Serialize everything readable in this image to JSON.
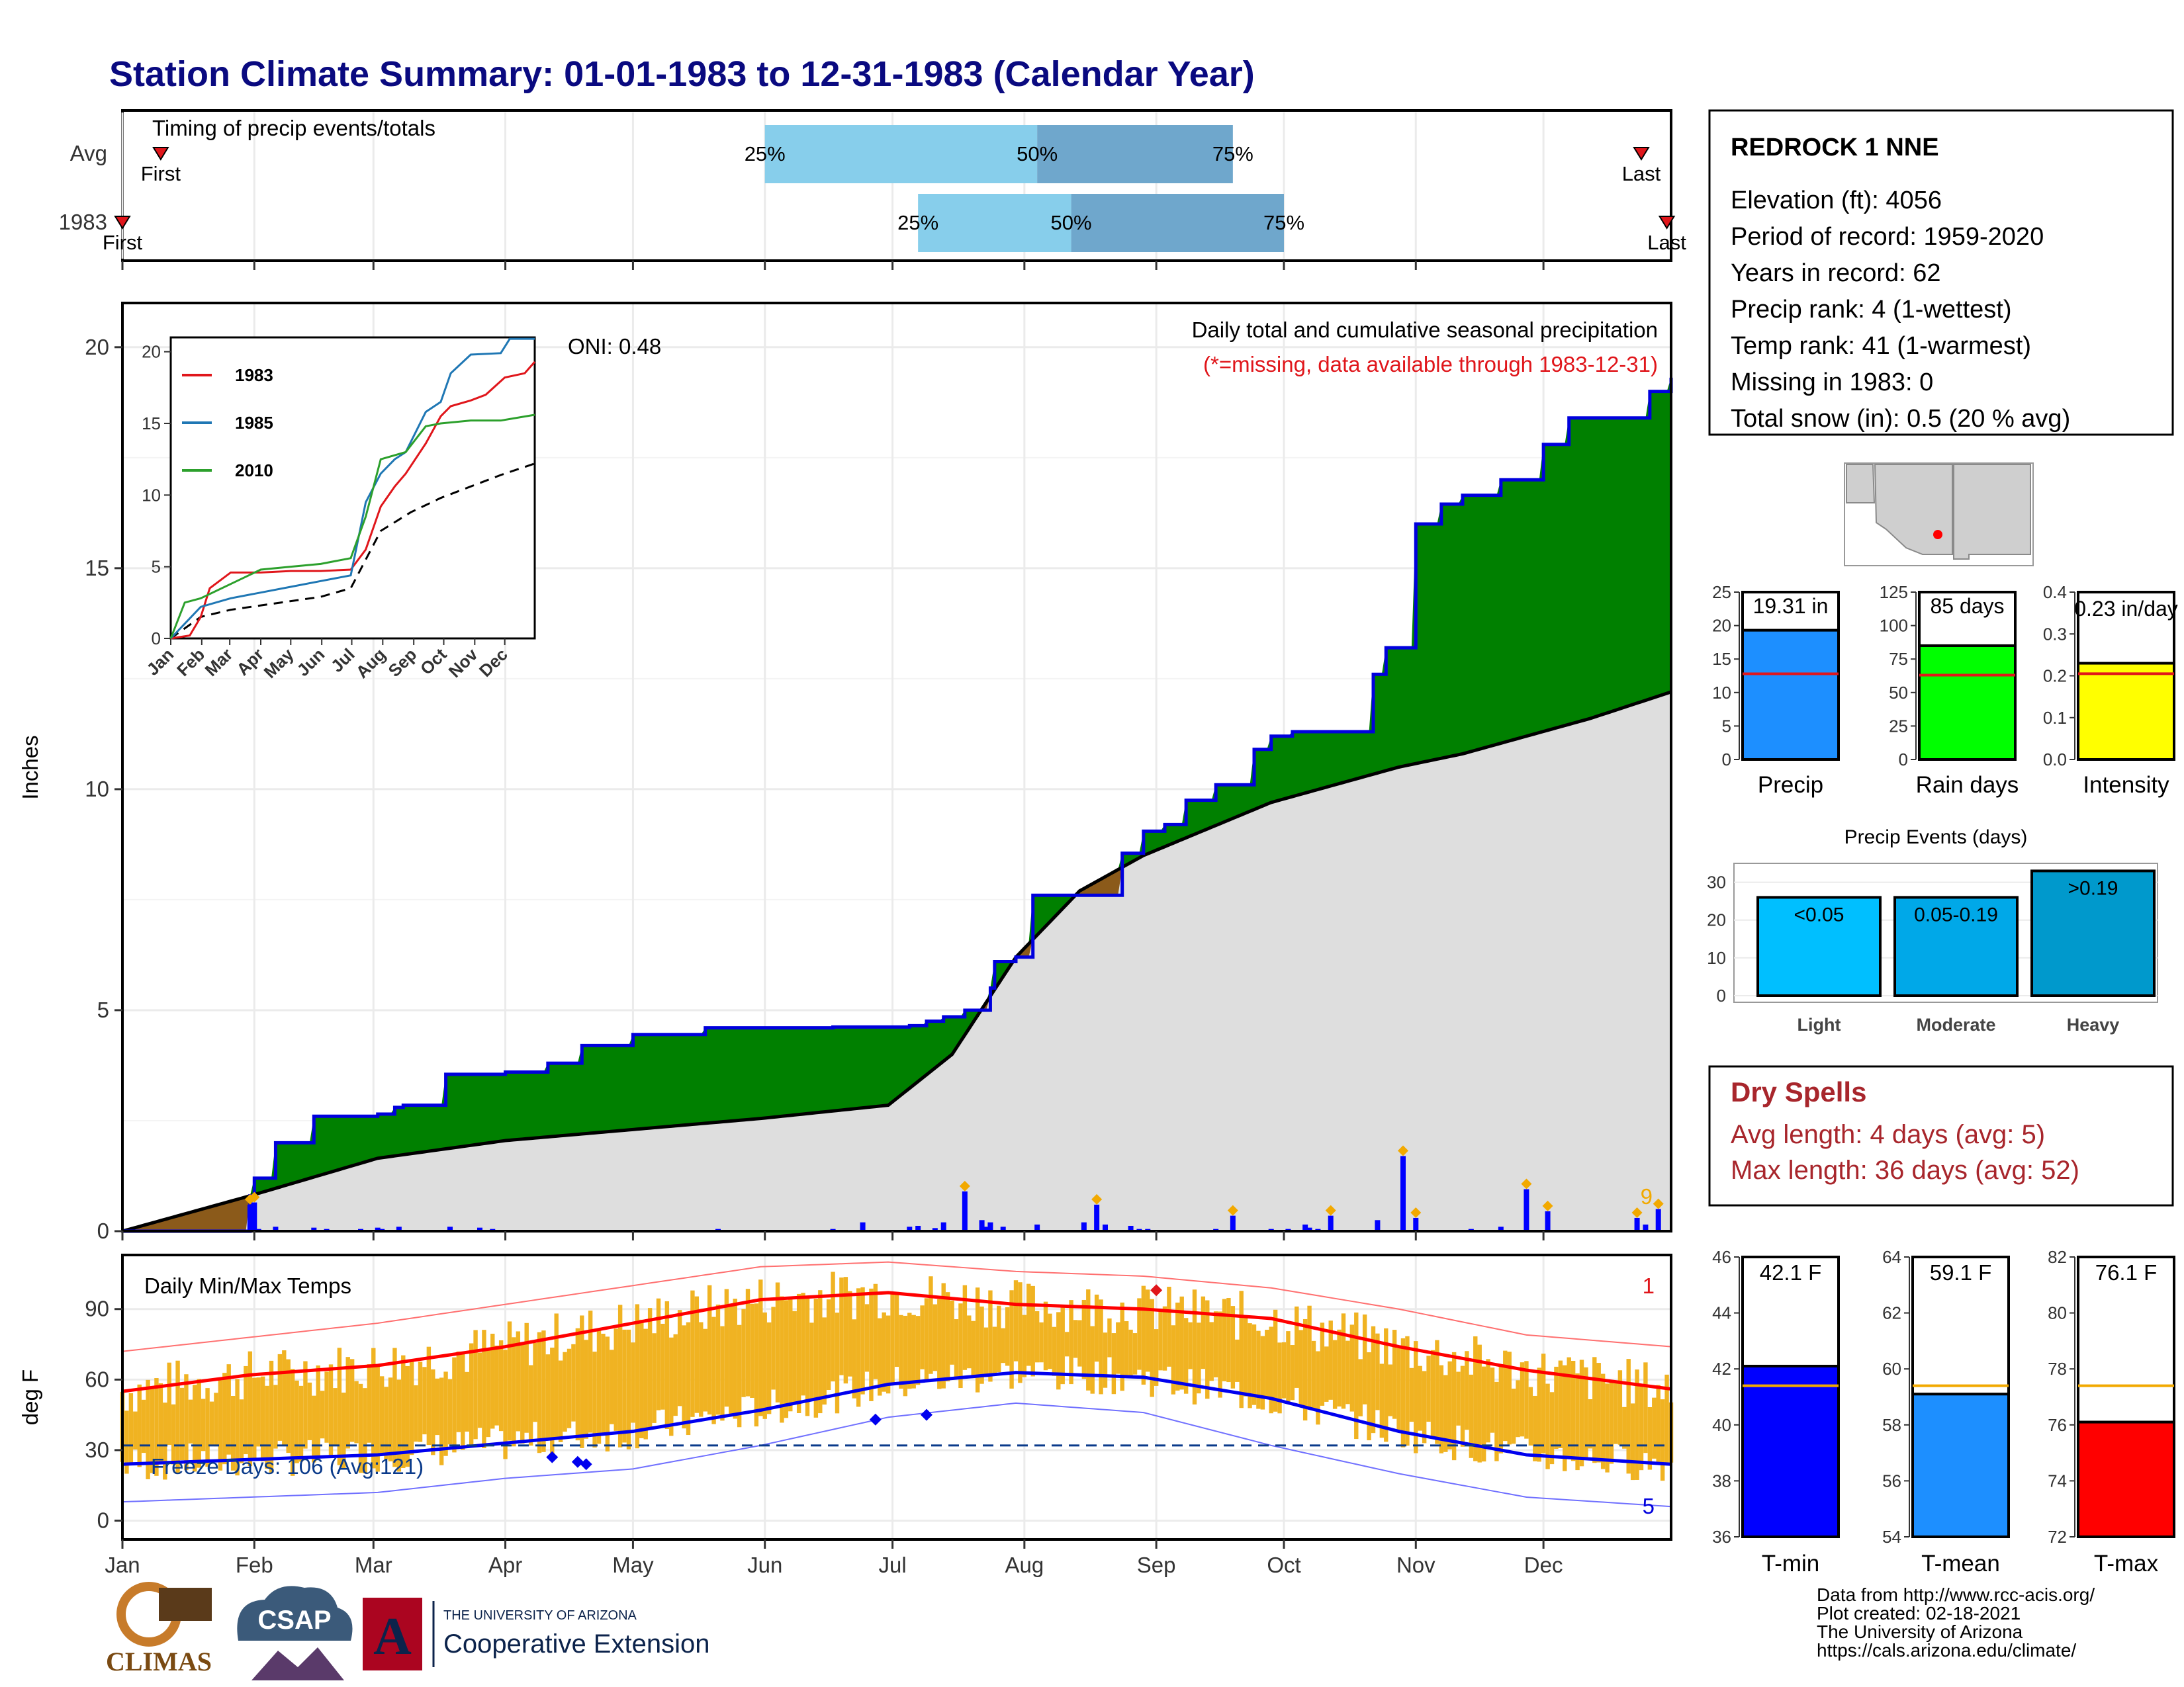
{
  "title": "Station Climate Summary: 01-01-1983 to 12-31-1983 (Calendar Year)",
  "colors": {
    "title": "#0a0a80",
    "green": "#008000",
    "blue_line": "#0000dd",
    "grey_fill": "#dedede",
    "brown": "#8b5a1a",
    "light_blue": "#87ceeb",
    "mid_blue": "#6fa7cc",
    "orange": "#f2a900",
    "red": "#e0161b",
    "bar_blue": "#1d8fff",
    "bar_green": "#00ff00",
    "bar_yellow": "#ffff00"
  },
  "timing_panel": {
    "title": "Timing of precip events/totals",
    "rows": [
      {
        "label": "Avg",
        "first_label": "First",
        "last_label": "Last",
        "p25_label": "25%",
        "p50_label": "50%",
        "p75_label": "75%",
        "first_day": 10,
        "last_day": 358,
        "p25_day": 152,
        "p50_day": 216,
        "p75_day": 262
      },
      {
        "label": "1983",
        "first_label": "First",
        "last_label": "Last",
        "p25_label": "25%",
        "p50_label": "50%",
        "p75_label": "75%",
        "first_day": 1,
        "last_day": 364,
        "p25_day": 188,
        "p50_day": 224,
        "p75_day": 274
      }
    ]
  },
  "station_info": {
    "name": "REDROCK 1 NNE",
    "lines": [
      "Elevation (ft): 4056",
      "Period of record: 1959-2020",
      "Years in record: 62",
      "Precip rank: 4 (1-wettest)",
      "Temp rank: 41 (1-warmest)",
      "Missing in 1983: 0",
      "Total snow (in): 0.5 (20 % avg)"
    ]
  },
  "precip_panel": {
    "ylabel": "Inches",
    "oni": "ONI: 0.48",
    "caption": "Daily total and cumulative seasonal precipitation",
    "missing_note": "(*=missing, data available through 1983-12-31)",
    "corner_count": "9",
    "yticks": [
      "0",
      "5",
      "10",
      "15",
      "20"
    ]
  },
  "inset": {
    "legend": [
      {
        "name": "1983",
        "color": "#e0161b"
      },
      {
        "name": "1985",
        "color": "#1f77b4"
      },
      {
        "name": "2010",
        "color": "#2ca02c"
      }
    ],
    "yticks": [
      "0",
      "5",
      "10",
      "15",
      "20"
    ],
    "xticks": [
      "Jan",
      "Feb",
      "Mar",
      "Apr",
      "May",
      "Jun",
      "Jul",
      "Aug",
      "Sep",
      "Oct",
      "Nov",
      "Dec"
    ]
  },
  "temp_panel": {
    "ylabel": "deg F",
    "title": "Daily Min/Max Temps",
    "freeze_text": "Freeze Days: 106 (Avg:121)",
    "record_high_count": "1",
    "record_low_count": "5",
    "yticks": [
      "0",
      "30",
      "60",
      "90"
    ]
  },
  "months": [
    "Jan",
    "Feb",
    "Mar",
    "Apr",
    "May",
    "Jun",
    "Jul",
    "Aug",
    "Sep",
    "Oct",
    "Nov",
    "Dec"
  ],
  "summary_bars": [
    {
      "label": "Precip",
      "value_text": "19.31 in",
      "value": 19.31,
      "avg": 12.8,
      "ymax": 25,
      "yticks": [
        "0",
        "5",
        "10",
        "15",
        "20",
        "25"
      ],
      "color": "#1d8fff"
    },
    {
      "label": "Rain days",
      "value_text": "85 days",
      "value": 85,
      "avg": 63,
      "ymax": 125,
      "yticks": [
        "0",
        "25",
        "50",
        "75",
        "100",
        "125"
      ],
      "color": "#00ff00"
    },
    {
      "label": "Intensity",
      "value_text": "0.23 in/day",
      "value": 0.23,
      "avg": 0.205,
      "ymax": 0.4,
      "yticks": [
        "0.0",
        "0.1",
        "0.2",
        "0.3",
        "0.4"
      ],
      "color": "#ffff00"
    }
  ],
  "precip_events": {
    "title": "Precip Events (days)",
    "yticks": [
      "0",
      "10",
      "20",
      "30"
    ],
    "bars": [
      {
        "label": "Light",
        "range": "<0.05",
        "value": 26,
        "color": "#00bfff"
      },
      {
        "label": "Moderate",
        "range": "0.05-0.19",
        "value": 26,
        "color": "#00a8e8"
      },
      {
        "label": "Heavy",
        "range": ">0.19",
        "value": 33,
        "color": "#0099cc"
      }
    ]
  },
  "dry_spells": {
    "title": "Dry Spells",
    "avg_line": "Avg length: 4 days (avg: 5)",
    "max_line": "Max length: 36 days (avg: 52)"
  },
  "temp_bars": [
    {
      "label": "T-min",
      "value_text": "42.1 F",
      "value": 42.1,
      "avg": 41.4,
      "ymin": 36,
      "ymax": 46,
      "yticks": [
        "36",
        "38",
        "40",
        "42",
        "44",
        "46"
      ],
      "color": "#0000ff"
    },
    {
      "label": "T-mean",
      "value_text": "59.1 F",
      "value": 59.1,
      "avg": 59.4,
      "ymin": 54,
      "ymax": 64,
      "yticks": [
        "54",
        "56",
        "58",
        "60",
        "62",
        "64"
      ],
      "color": "#1d8fff"
    },
    {
      "label": "T-max",
      "value_text": "76.1 F",
      "value": 76.1,
      "avg": 77.4,
      "ymin": 72,
      "ymax": 82,
      "yticks": [
        "72",
        "74",
        "76",
        "78",
        "80",
        "82"
      ],
      "color": "#ff0000"
    }
  ],
  "footer": {
    "lines": [
      "Data from http://www.rcc-acis.org/",
      "Plot created: 02-18-2021",
      "The University of Arizona",
      "https://cals.arizona.edu/climate/"
    ],
    "logo_climas": "CLIMAS",
    "logo_csap": "CSAP",
    "logo_ua_top": "THE UNIVERSITY OF ARIZONA",
    "logo_ua_bottom": "Cooperative Extension"
  },
  "chart_data": [
    {
      "type": "area",
      "title": "Daily total and cumulative seasonal precipitation",
      "ylabel": "Inches",
      "ylim": [
        0,
        21
      ],
      "x_unit": "day of year 1983",
      "series": [
        {
          "name": "1983",
          "x": [
            1,
            31,
            32,
            37,
            46,
            61,
            65,
            67,
            77,
            84,
            91,
            101,
            109,
            121,
            138,
            151,
            168,
            181,
            186,
            190,
            194,
            199,
            205,
            206,
            211,
            215,
            236,
            241,
            246,
            251,
            258,
            267,
            271,
            276,
            281,
            295,
            298,
            305,
            311,
            316,
            325,
            335,
            341,
            355,
            360,
            365
          ],
          "values": [
            0,
            0.8,
            1.2,
            2.0,
            2.6,
            2.65,
            2.8,
            2.85,
            3.55,
            3.55,
            3.6,
            3.8,
            4.2,
            4.45,
            4.6,
            4.6,
            4.62,
            4.62,
            4.65,
            4.75,
            4.85,
            5.0,
            5.5,
            6.1,
            6.2,
            7.6,
            8.55,
            9.05,
            9.2,
            9.75,
            10.1,
            10.9,
            11.2,
            11.3,
            11.3,
            12.6,
            13.2,
            16.0,
            16.45,
            16.65,
            17.0,
            17.8,
            18.4,
            18.4,
            19.0,
            19.31
          ]
        },
        {
          "name": "Avg",
          "x": [
            1,
            31,
            61,
            91,
            121,
            151,
            181,
            196,
            211,
            226,
            241,
            256,
            271,
            286,
            301,
            316,
            331,
            346,
            365
          ],
          "values": [
            0,
            0.8,
            1.65,
            2.05,
            2.3,
            2.55,
            2.85,
            4.0,
            6.2,
            7.7,
            8.5,
            9.1,
            9.7,
            10.1,
            10.5,
            10.8,
            11.2,
            11.6,
            12.2
          ]
        }
      ],
      "daily_bars": {
        "x": [
          31,
          32,
          33,
          37,
          46,
          49,
          57,
          61,
          62,
          66,
          78,
          85,
          88,
          141,
          168,
          175,
          186,
          188,
          192,
          194,
          199,
          203,
          204,
          205,
          208,
          216,
          227,
          230,
          232,
          238,
          240,
          242,
          258,
          262,
          271,
          275,
          279,
          280,
          282,
          285,
          296,
          302,
          305,
          318,
          325,
          331,
          336,
          357,
          359,
          362
        ],
        "values": [
          0.6,
          0.65,
          0.05,
          0.1,
          0.08,
          0.05,
          0.05,
          0.08,
          0.05,
          0.1,
          0.1,
          0.08,
          0.05,
          0.05,
          0.05,
          0.2,
          0.1,
          0.12,
          0.07,
          0.2,
          0.9,
          0.25,
          0.1,
          0.2,
          0.1,
          0.15,
          0.2,
          0.6,
          0.15,
          0.12,
          0.05,
          0.05,
          0.05,
          0.35,
          0.05,
          0.05,
          0.15,
          0.08,
          0.05,
          0.35,
          0.25,
          1.7,
          0.3,
          0.05,
          0.1,
          0.95,
          0.45,
          0.3,
          0.15,
          0.5
        ]
      }
    },
    {
      "type": "line",
      "title": "Daily Min/Max Temps",
      "ylabel": "deg F",
      "ylim": [
        -8,
        113
      ],
      "x_unit": "day of year 1983",
      "series": [
        {
          "name": "Avg max",
          "x": [
            1,
            31,
            61,
            91,
            121,
            151,
            181,
            211,
            241,
            271,
            301,
            331,
            365
          ],
          "values": [
            55,
            62,
            66,
            74,
            84,
            94,
            97,
            92,
            90,
            86,
            74,
            64,
            56
          ]
        },
        {
          "name": "Avg min",
          "x": [
            1,
            31,
            61,
            91,
            121,
            151,
            181,
            211,
            241,
            271,
            301,
            331,
            365
          ],
          "values": [
            24,
            26,
            28,
            33,
            38,
            47,
            58,
            63,
            61,
            52,
            38,
            28,
            24
          ]
        },
        {
          "name": "Record max",
          "x": [
            1,
            31,
            61,
            91,
            121,
            151,
            181,
            211,
            241,
            271,
            301,
            331,
            365
          ],
          "values": [
            72,
            78,
            84,
            92,
            100,
            108,
            110,
            106,
            104,
            99,
            90,
            79,
            74
          ]
        },
        {
          "name": "Record min",
          "x": [
            1,
            31,
            61,
            91,
            121,
            151,
            181,
            211,
            241,
            271,
            301,
            331,
            365
          ],
          "values": [
            8,
            10,
            12,
            18,
            22,
            32,
            44,
            50,
            46,
            32,
            20,
            10,
            6
          ]
        }
      ],
      "freeze_line": 32
    }
  ]
}
